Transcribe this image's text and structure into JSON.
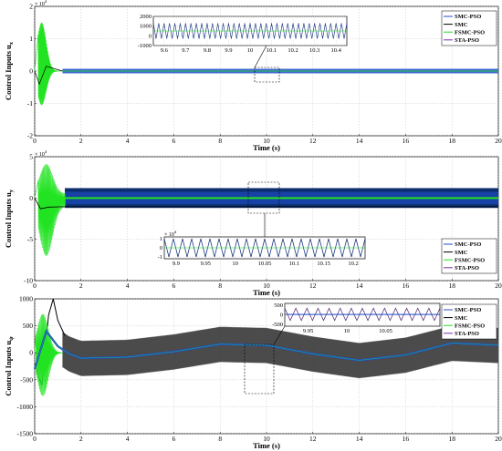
{
  "colors": {
    "smc_pso": "#1f4fc8",
    "smc": "#000000",
    "fsmc_pso": "#22e322",
    "sta_pso": "#7b2fa6",
    "envelope": "#0b2f6e",
    "envelope_bottom": "#555555"
  },
  "chart_data": [
    {
      "type": "line",
      "ylabel": "Control Inputs u",
      "ylabel_sub": "x",
      "xlabel": "Time (s)",
      "exponent": "× 10",
      "exponent_power": "4",
      "xlim": [
        0,
        20
      ],
      "ylim": [
        -2,
        2
      ],
      "xticks": [
        "0",
        "2",
        "4",
        "6",
        "8",
        "10",
        "12",
        "14",
        "16",
        "18",
        "20"
      ],
      "yticks": [
        "-2",
        "-1",
        "0",
        "1",
        "2"
      ],
      "series": [
        {
          "name": "SMC-PSO",
          "x": [
            0,
            0.2,
            0.5,
            1,
            2,
            20
          ],
          "y": [
            0,
            0.4,
            0.2,
            0,
            0,
            0
          ]
        },
        {
          "name": "SMC",
          "x": [
            0,
            0.2,
            0.5,
            1,
            2,
            20
          ],
          "y": [
            0,
            -0.5,
            0.1,
            0.02,
            0,
            0
          ]
        },
        {
          "name": "FSMC-PSO",
          "x": [
            0,
            0.3,
            0.5,
            0.7,
            1,
            1.3,
            20
          ],
          "y": [
            0,
            1.5,
            -1.0,
            0.8,
            0.2,
            0.1,
            0.1
          ]
        },
        {
          "name": "STA-PSO",
          "x": [
            0,
            20
          ],
          "y": [
            0,
            0
          ]
        }
      ],
      "inset": {
        "xlim": [
          9.55,
          10.45
        ],
        "ylim": [
          -1000,
          2000
        ],
        "xticks": [
          "9.6",
          "9.7",
          "9.8",
          "9.9",
          "10",
          "10.1",
          "10.2",
          "10.3",
          "10.4"
        ],
        "yticks": [
          "2000",
          "1000",
          "0",
          "-1000"
        ],
        "note": "oscillation between about -300 and 1300"
      }
    },
    {
      "type": "line",
      "ylabel": "Control Inputs u",
      "ylabel_sub": "y",
      "xlabel": "Time (s)",
      "exponent": "× 10",
      "exponent_power": "4",
      "xlim": [
        0,
        20
      ],
      "ylim": [
        -10,
        5
      ],
      "xticks": [
        "0",
        "2",
        "4",
        "6",
        "8",
        "10",
        "12",
        "14",
        "16",
        "18",
        "20"
      ],
      "yticks": [
        "-10",
        "-5",
        "0",
        "5"
      ],
      "series": [
        {
          "name": "SMC-PSO",
          "x": [
            0,
            2,
            20
          ],
          "y": [
            0,
            0,
            0
          ],
          "band": [
            -1.2,
            1.2
          ]
        },
        {
          "name": "SMC",
          "x": [
            0,
            0.2,
            0.5,
            1,
            1.5,
            20
          ],
          "y": [
            0,
            -1.2,
            -1.5,
            -0.8,
            -1.1,
            -1.0
          ]
        },
        {
          "name": "FSMC-PSO",
          "x": [
            0,
            0.3,
            0.5,
            0.8,
            1.1,
            1.4,
            20
          ],
          "y": [
            0,
            3,
            -7,
            4,
            -3,
            0,
            0
          ]
        },
        {
          "name": "STA-PSO",
          "x": [
            0,
            20
          ],
          "y": [
            0,
            0
          ]
        }
      ],
      "inset": {
        "xlim": [
          9.88,
          10.22
        ],
        "ylim": [
          -1.2,
          1.2
        ],
        "exponent": "× 10",
        "exponent_power": "4",
        "xticks": [
          "9.9",
          "9.95",
          "10",
          "10.05",
          "10.1",
          "10.15",
          "10.2"
        ],
        "yticks": [
          "1",
          "0",
          "-1"
        ]
      }
    },
    {
      "type": "line",
      "ylabel": "Control Inputs u",
      "ylabel_sub": "ψ",
      "xlabel": "Time (s)",
      "xlim": [
        0,
        20
      ],
      "ylim": [
        -1500,
        1000
      ],
      "xticks": [
        "0",
        "2",
        "4",
        "6",
        "8",
        "10",
        "12",
        "14",
        "16",
        "18",
        "20"
      ],
      "yticks": [
        "-1500",
        "-1000",
        "-500",
        "0",
        "500",
        "1000"
      ],
      "series": [
        {
          "name": "SMC-PSO",
          "x": [
            0,
            0.5,
            1,
            1.5,
            2,
            4,
            6,
            8,
            10,
            12,
            14,
            16,
            18,
            20
          ],
          "y": [
            -300,
            400,
            120,
            -20,
            -100,
            -80,
            20,
            160,
            140,
            -20,
            -140,
            -40,
            180,
            140
          ]
        },
        {
          "name": "SMC",
          "x": [
            0,
            0.3,
            0.8,
            1.5,
            20
          ],
          "y": [
            0,
            -600,
            1000,
            200,
            0
          ]
        },
        {
          "name": "FSMC-PSO",
          "x": [
            0,
            0.2,
            0.4,
            0.6,
            0.8,
            1.0,
            1.2
          ],
          "y": [
            0,
            -900,
            800,
            -400,
            400,
            -100,
            0
          ]
        },
        {
          "name": "STA-PSO",
          "x": [
            0,
            20
          ],
          "y": [
            0,
            0
          ]
        }
      ],
      "inset": {
        "xlim": [
          9.92,
          10.12
        ],
        "ylim": [
          -600,
          600
        ],
        "xticks": [
          "9.95",
          "10",
          "10.05"
        ],
        "yticks": [
          "500",
          "0",
          "-500"
        ]
      }
    }
  ]
}
